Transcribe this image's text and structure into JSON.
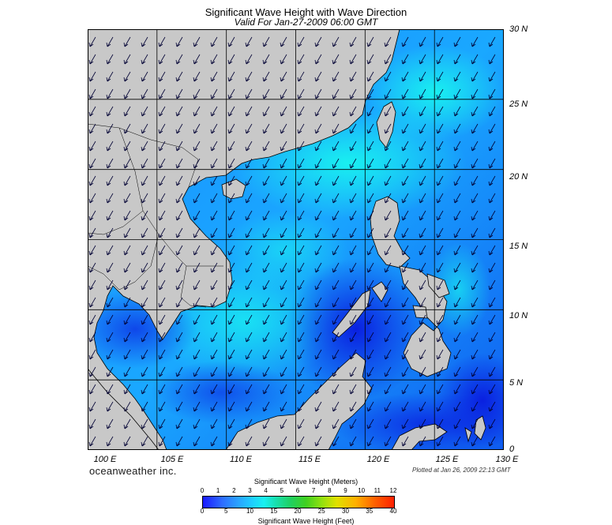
{
  "title": "Significant Wave Height with Wave Direction",
  "subtitle": "Valid For Jan-27-2009 06:00 GMT",
  "lat_labels": [
    "30 N",
    "25 N",
    "20 N",
    "15 N",
    "10 N",
    "5 N",
    "0"
  ],
  "lon_labels": [
    "100 E",
    "105 E",
    "110 E",
    "115 E",
    "120 E",
    "125 E",
    "130 E"
  ],
  "brand": "oceanweather inc.",
  "plotted": "Plotted at Jan 26, 2009 22:13 GMT",
  "colorbar": {
    "title_top": "Significant Wave Height (Meters)",
    "title_bottom": "Significant Wave Height (Feet)",
    "meters": [
      "0",
      "1",
      "2",
      "3",
      "4",
      "5",
      "6",
      "7",
      "8",
      "9",
      "10",
      "11",
      "12"
    ],
    "feet": [
      "0",
      "5",
      "10",
      "15",
      "20",
      "25",
      "30",
      "35",
      "40"
    ]
  },
  "colors": {
    "land": "#c8c8c8",
    "ocean_deep": "#0a2de0",
    "ocean_mid": "#1a7cff",
    "ocean_high": "#19e8f0",
    "grid": "#000000",
    "arrow": "#000033"
  },
  "map_extent": {
    "lon": [
      100,
      130
    ],
    "lat": [
      0,
      30
    ]
  },
  "wave_direction": "NE monsoon swell, arrows pointing toward SW"
}
